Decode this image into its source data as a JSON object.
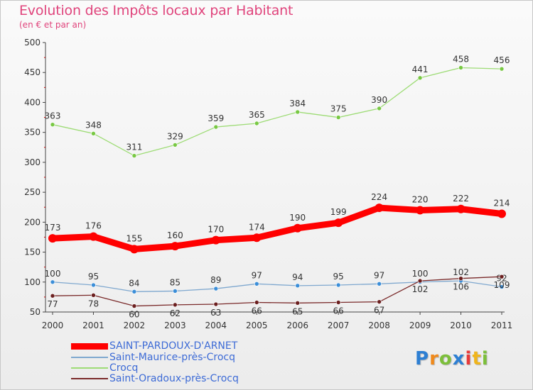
{
  "title": "Evolution des Impôts locaux par Habitant",
  "subtitle": "(en € et par an)",
  "logo_text": "Proxiti",
  "colors": {
    "title": "#e0447c",
    "axis": "#444444",
    "grid_tick": "#cc0000",
    "legend_text": "#3d6bd6"
  },
  "chart_data": {
    "type": "line",
    "categories": [
      "2000",
      "2001",
      "2002",
      "2003",
      "2004",
      "2005",
      "2006",
      "2007",
      "2008",
      "2009",
      "2010",
      "2011"
    ],
    "ylim": [
      50,
      500
    ],
    "yticks": [
      50,
      100,
      150,
      200,
      250,
      300,
      350,
      400,
      450,
      500
    ],
    "xlabel": "",
    "ylabel": "",
    "legend_position": "bottom-left",
    "series": [
      {
        "name": "SAINT-PARDOUX-D'ARNET",
        "values": [
          173,
          176,
          155,
          160,
          170,
          174,
          190,
          199,
          224,
          220,
          222,
          214
        ],
        "color": "#ff0000",
        "marker": "#ff0000",
        "label_position": "above"
      },
      {
        "name": "Saint-Maurice-près-Crocq",
        "values": [
          100,
          95,
          84,
          85,
          89,
          97,
          94,
          95,
          97,
          100,
          102,
          92
        ],
        "color": "#7fa8cf",
        "marker": "#3b8ed8",
        "label_position": "above"
      },
      {
        "name": "Crocq",
        "values": [
          363,
          348,
          311,
          329,
          359,
          365,
          384,
          375,
          390,
          441,
          458,
          456
        ],
        "color": "#9edc76",
        "marker": "#78c843",
        "label_position": "above"
      },
      {
        "name": "Saint-Oradoux-près-Crocq",
        "values": [
          77,
          78,
          60,
          62,
          63,
          66,
          65,
          66,
          67,
          102,
          106,
          109
        ],
        "color": "#7a2a2a",
        "marker": "#6b1f1f",
        "label_position": "below"
      }
    ]
  }
}
